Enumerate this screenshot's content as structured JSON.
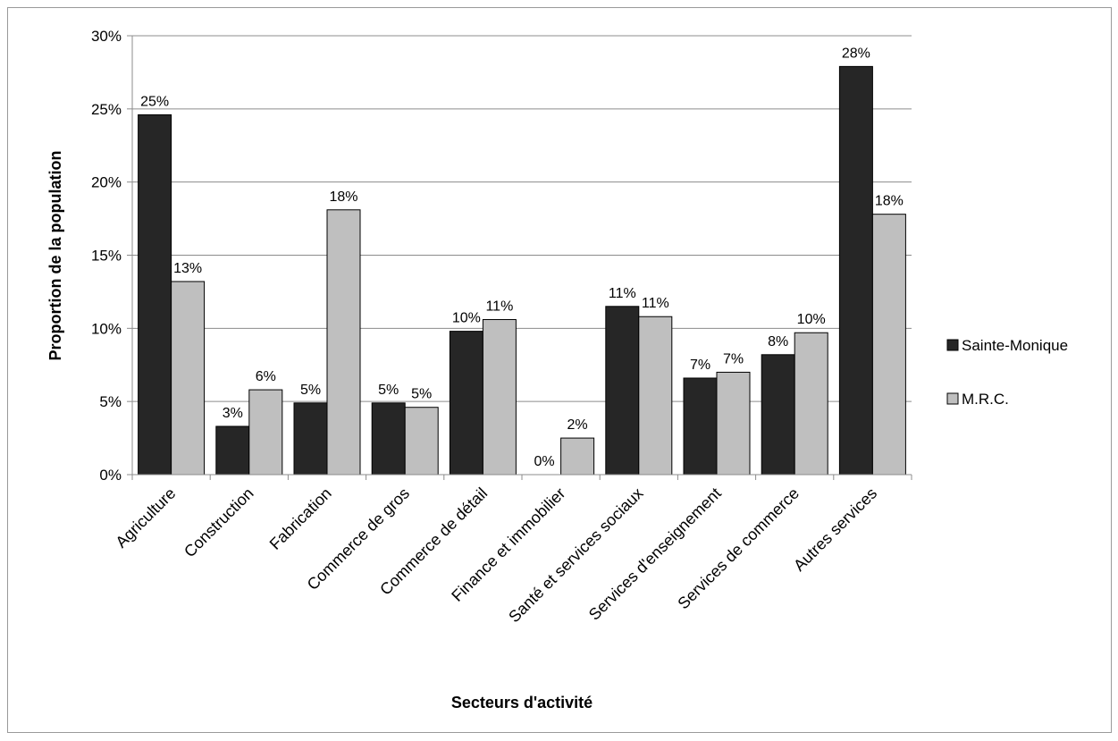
{
  "chart_data": {
    "type": "bar",
    "title": "",
    "xlabel": "Secteurs d'activité",
    "ylabel": "Proportion de la population",
    "ylim": [
      0,
      30
    ],
    "yticks": [
      "0%",
      "5%",
      "10%",
      "15%",
      "20%",
      "25%",
      "30%"
    ],
    "grid": true,
    "legend_position": "right",
    "categories": [
      "Agriculture",
      "Construction",
      "Fabrication",
      "Commerce de gros",
      "Commerce de détail",
      "Finance et immobilier",
      "Santé et services sociaux",
      "Services d'enseignement",
      "Services de commerce",
      "Autres services"
    ],
    "series": [
      {
        "name": "Sainte-Monique",
        "color": "#262626",
        "values": [
          24.6,
          3.3,
          4.9,
          4.9,
          9.8,
          0,
          11.5,
          6.6,
          8.2,
          27.9
        ],
        "labels": [
          "25%",
          "3%",
          "5%",
          "5%",
          "10%",
          "0%",
          "11%",
          "7%",
          "8%",
          "28%"
        ]
      },
      {
        "name": "M.R.C.",
        "color": "#bfbfbf",
        "values": [
          13.2,
          5.8,
          18.1,
          4.6,
          10.6,
          2.5,
          10.8,
          7.0,
          9.7,
          17.8
        ],
        "labels": [
          "13%",
          "6%",
          "18%",
          "5%",
          "11%",
          "2%",
          "11%",
          "7%",
          "10%",
          "18%"
        ]
      }
    ]
  }
}
